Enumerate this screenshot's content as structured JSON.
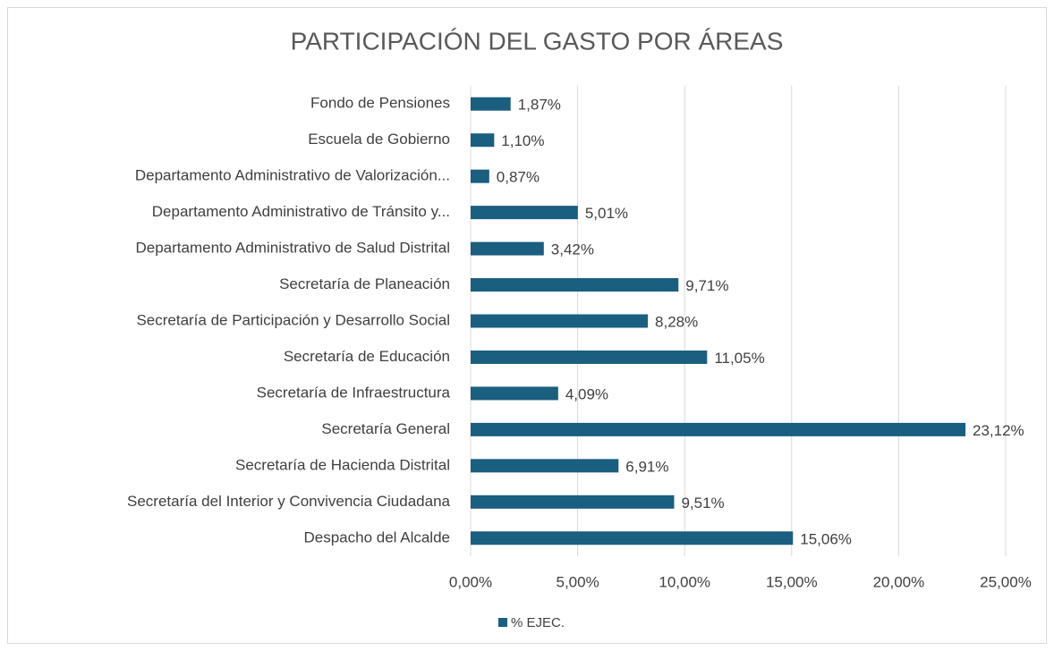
{
  "chart_data": {
    "type": "barh",
    "title": "PARTICIPACIÓN DEL GASTO POR ÁREAS",
    "categories": [
      "Fondo de Pensiones",
      "Escuela de Gobierno",
      "Departamento Administrativo de Valorización...",
      "Departamento Administrativo de Tránsito y...",
      "Departamento Administrativo de Salud Distrital",
      "Secretaría de Planeación",
      "Secretaría de Participación y Desarrollo Social",
      "Secretaría de Educación",
      "Secretaría de Infraestructura",
      "Secretaría General",
      "Secretaría de Hacienda Distrital",
      "Secretaría del Interior y Convivencia Ciudadana",
      "Despacho del Alcalde"
    ],
    "series": [
      {
        "name": "% EJEC.",
        "color": "#1a5e80",
        "values": [
          1.87,
          1.1,
          0.87,
          5.01,
          3.42,
          9.71,
          8.28,
          11.05,
          4.09,
          23.12,
          6.91,
          9.51,
          15.06
        ],
        "value_labels": [
          "1,87%",
          "1,10%",
          "0,87%",
          "5,01%",
          "3,42%",
          "9,71%",
          "8,28%",
          "11,05%",
          "4,09%",
          "23,12%",
          "6,91%",
          "9,51%",
          "15,06%"
        ]
      }
    ],
    "xlim": [
      0,
      25
    ],
    "xticks": [
      {
        "value": 0,
        "label": "0,00%"
      },
      {
        "value": 5,
        "label": "5,00%"
      },
      {
        "value": 10,
        "label": "10,00%"
      },
      {
        "value": 15,
        "label": "15,00%"
      },
      {
        "value": 20,
        "label": "20,00%"
      },
      {
        "value": 25,
        "label": "25,00%"
      }
    ],
    "grid": true,
    "legend": "bottom"
  }
}
